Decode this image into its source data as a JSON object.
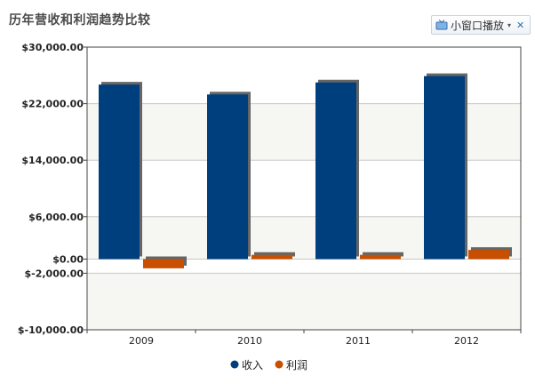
{
  "page": {
    "title": "历年营收和利润趋势比较",
    "popout_label": "小窗口播放",
    "popout_caret": "▾",
    "popout_close": "✕"
  },
  "chart_data": {
    "type": "bar",
    "title": "历年营收和利润趋势比较",
    "categories": [
      "2009",
      "2010",
      "2011",
      "2012"
    ],
    "series": [
      {
        "name": "收入",
        "color": "#003f7d",
        "values": [
          24700,
          23300,
          25000,
          25900
        ]
      },
      {
        "name": "利润",
        "color": "#c84e00",
        "values": [
          -1300,
          600,
          600,
          1300
        ]
      }
    ],
    "ylim": [
      -10000,
      30000
    ],
    "yticks": [
      {
        "value": 30000,
        "label": "$30,000.00"
      },
      {
        "value": 22000,
        "label": "$22,000.00"
      },
      {
        "value": 14000,
        "label": "$14,000.00"
      },
      {
        "value": 6000,
        "label": "$6,000.00"
      },
      {
        "value": 0,
        "label": "$0.00"
      },
      {
        "value": -2000,
        "label": "$-2,000.00"
      },
      {
        "value": -10000,
        "label": "$-10,000.00"
      }
    ],
    "grid": true,
    "legend_position": "bottom"
  }
}
